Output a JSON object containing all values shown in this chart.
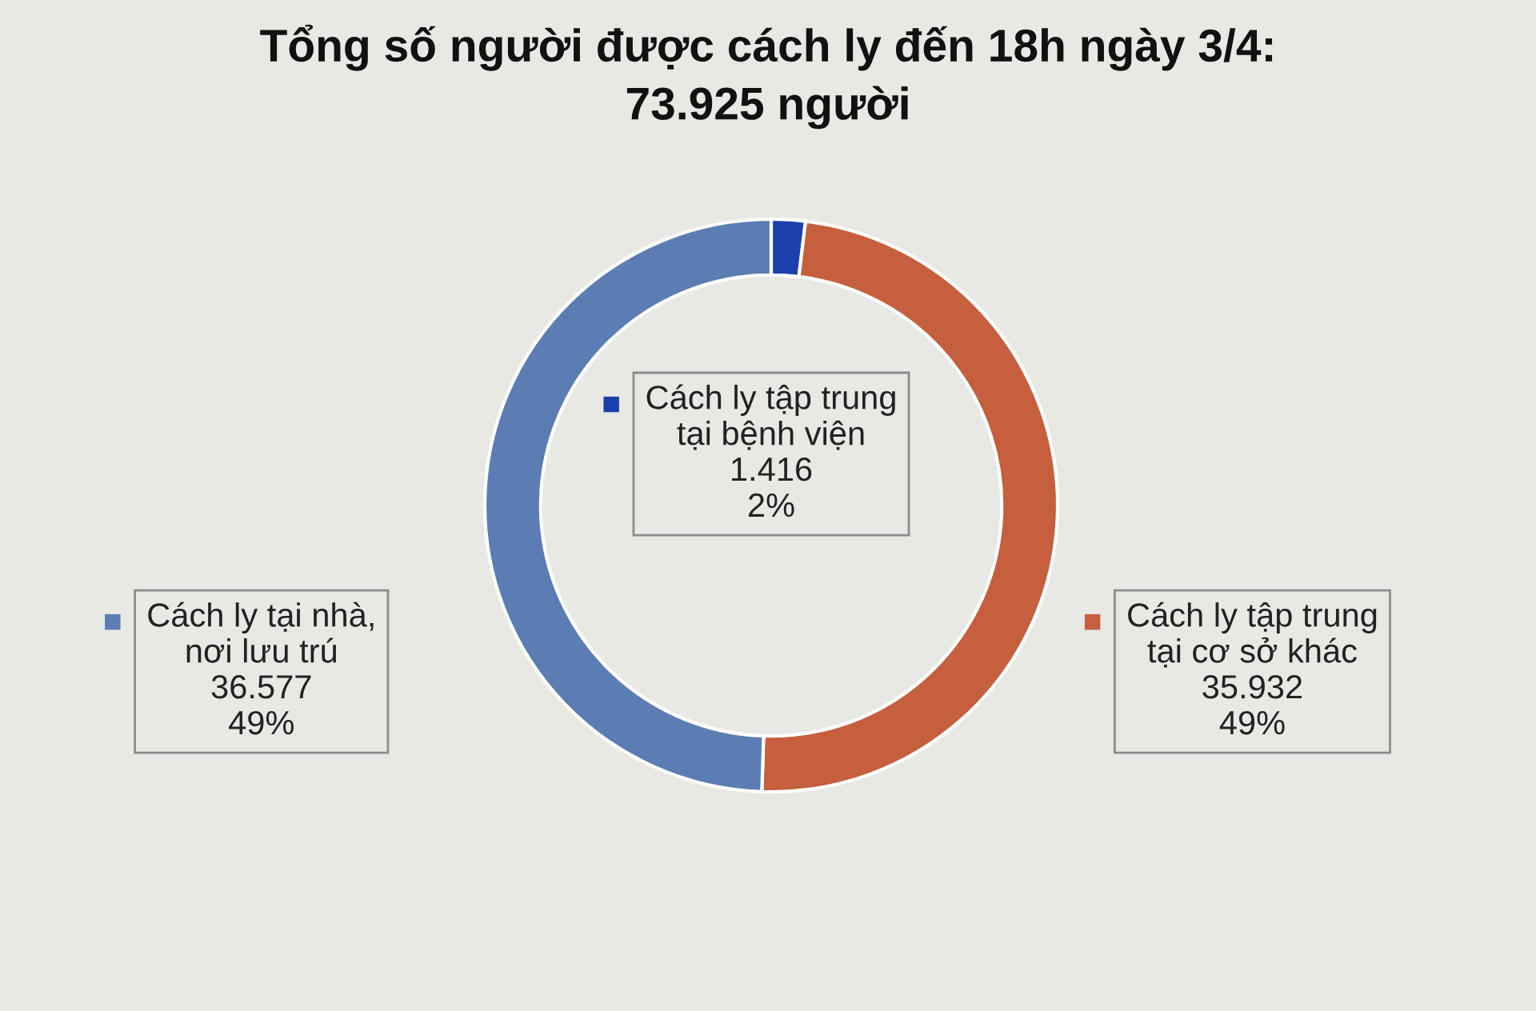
{
  "chart_data": {
    "type": "donut",
    "title": "Tổng số người được cách ly đến 18h ngày 3/4:\n73.925 người",
    "categories": [
      "Cách ly tập trung\ntại bệnh viện",
      "Cách ly tập trung\ntại cơ sở khác",
      "Cách ly tại nhà,\nnơi lưu trú"
    ],
    "values": [
      1416,
      35932,
      36577
    ],
    "colors": [
      "#1c3fae",
      "#c55f3e",
      "#5b7db3"
    ],
    "value_labels": [
      "1.416\n2%",
      "35.932\n49%",
      "36.577\n49%"
    ],
    "legend": "center"
  }
}
